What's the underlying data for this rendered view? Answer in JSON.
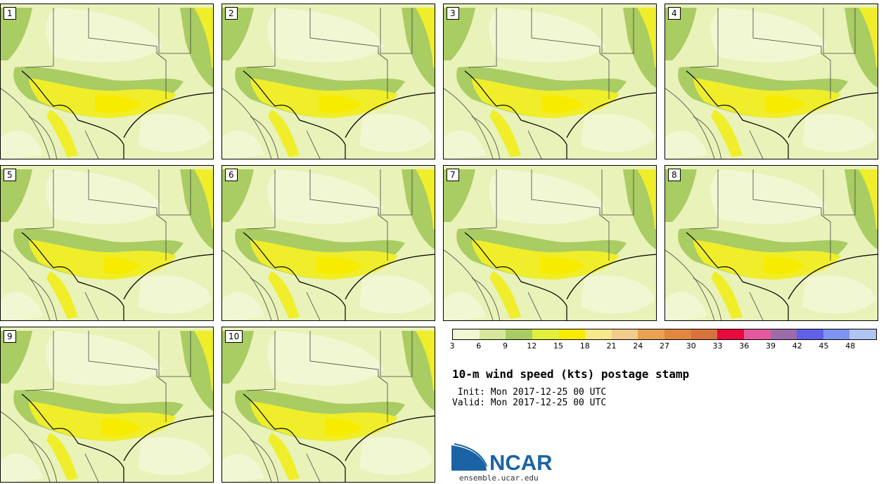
{
  "title": "10-m wind speed (kts) postage stamp",
  "init_label": " Init:",
  "init_value": "Mon 2017-12-25 00 UTC",
  "valid_label": "Valid:",
  "valid_value": "Mon 2017-12-25 00 UTC",
  "members": [
    "1",
    "2",
    "3",
    "4",
    "5",
    "6",
    "7",
    "8",
    "9",
    "10"
  ],
  "colorbar": {
    "colors": [
      "#f2f7d3",
      "#d5e89b",
      "#a9cc63",
      "#e3ef3a",
      "#f7ec00",
      "#f7e88a",
      "#f1cc8c",
      "#e9a251",
      "#e08840",
      "#d8733d",
      "#e8093d",
      "#e3599c",
      "#9b6ca9",
      "#6060e8",
      "#7e94f0",
      "#b1c5f3"
    ],
    "labels": [
      "3",
      "6",
      "9",
      "12",
      "15",
      "18",
      "21",
      "24",
      "27",
      "30",
      "33",
      "36",
      "39",
      "42",
      "45",
      "48"
    ]
  },
  "logo_text": "NCAR",
  "logo_url": "ensemble.ucar.edu",
  "colors": {
    "background": "#e9f2b9",
    "light": "#f2f7d3",
    "medium": "#a9cc63",
    "yellow": "#f0ee2a",
    "strong": "#f7ec00",
    "ncar_blue": "#1b63a4"
  }
}
